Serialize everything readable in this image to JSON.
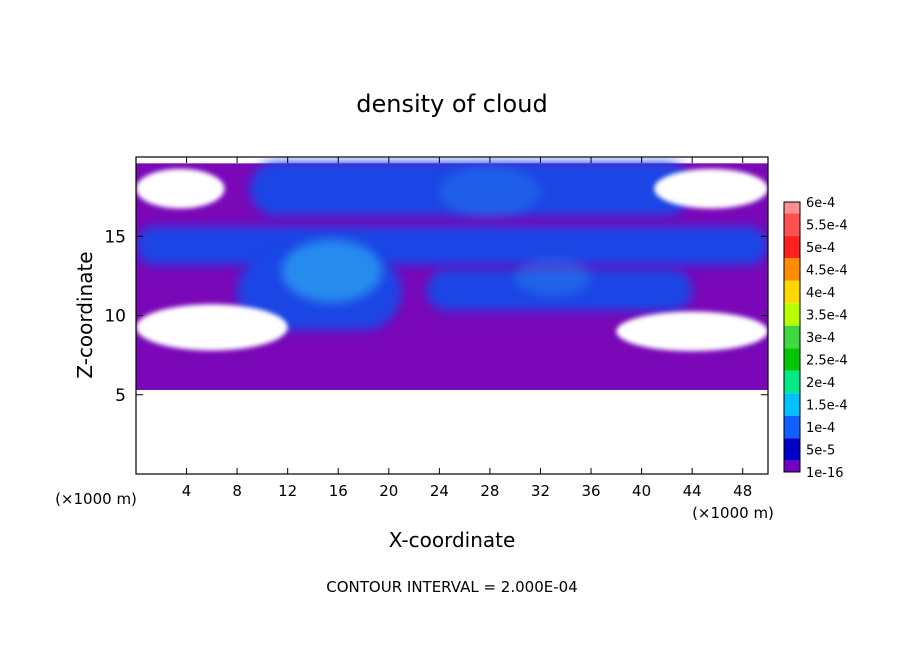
{
  "chart_data": {
    "type": "heatmap",
    "title": "density of cloud",
    "xlabel": "X-coordinate",
    "ylabel": "Z-coordinate",
    "x_unit": "(×1000 m)",
    "y_unit": "(×1000 m)",
    "footer": "CONTOUR INTERVAL = 2.000E-04",
    "xlim": [
      0,
      50
    ],
    "ylim": [
      0,
      20
    ],
    "x_ticks": [
      4,
      8,
      12,
      16,
      20,
      24,
      28,
      32,
      36,
      40,
      44,
      48
    ],
    "y_ticks": [
      5,
      10,
      15
    ],
    "colorbar": {
      "labels": [
        "6e-4",
        "5.5e-4",
        "5e-4",
        "4.5e-4",
        "4e-4",
        "3.5e-4",
        "3e-4",
        "2.5e-4",
        "2e-4",
        "1.5e-4",
        "1e-4",
        "5e-5",
        "1e-16"
      ],
      "colors": [
        "#ff9090",
        "#ff5050",
        "#ff2020",
        "#ff8c00",
        "#ffd800",
        "#b8ff00",
        "#40d840",
        "#00c800",
        "#00e888",
        "#00c0ff",
        "#1060ff",
        "#0000c8",
        "#7400c0"
      ]
    },
    "fields": {
      "background_level": "1e-16",
      "background_color": "#7a08b8",
      "blob_color": "#1848e8",
      "core_color": "#2a9cf0",
      "cloud_base_z": 5.3,
      "cloud_top_z": 19.6,
      "blue_bands": [
        {
          "z_center": 18.0,
          "z_half": 1.7,
          "x_start": 9,
          "x_end": 44
        },
        {
          "z_center": 14.4,
          "z_half": 1.2,
          "x_start": 0,
          "x_end": 50
        },
        {
          "z_center": 11.6,
          "z_half": 1.3,
          "x_start": 23,
          "x_end": 44
        },
        {
          "z_center": 11.5,
          "z_half": 2.4,
          "x_start": 8,
          "x_end": 21
        }
      ],
      "clear_gaps": [
        {
          "x": [
            0,
            7
          ],
          "z": [
            16.5,
            19.5
          ]
        },
        {
          "x": [
            41,
            50
          ],
          "z": [
            16.5,
            19.5
          ]
        },
        {
          "x": [
            0,
            12
          ],
          "z": [
            7.5,
            11.0
          ]
        },
        {
          "x": [
            38,
            50
          ],
          "z": [
            7.5,
            10.5
          ]
        }
      ]
    }
  }
}
